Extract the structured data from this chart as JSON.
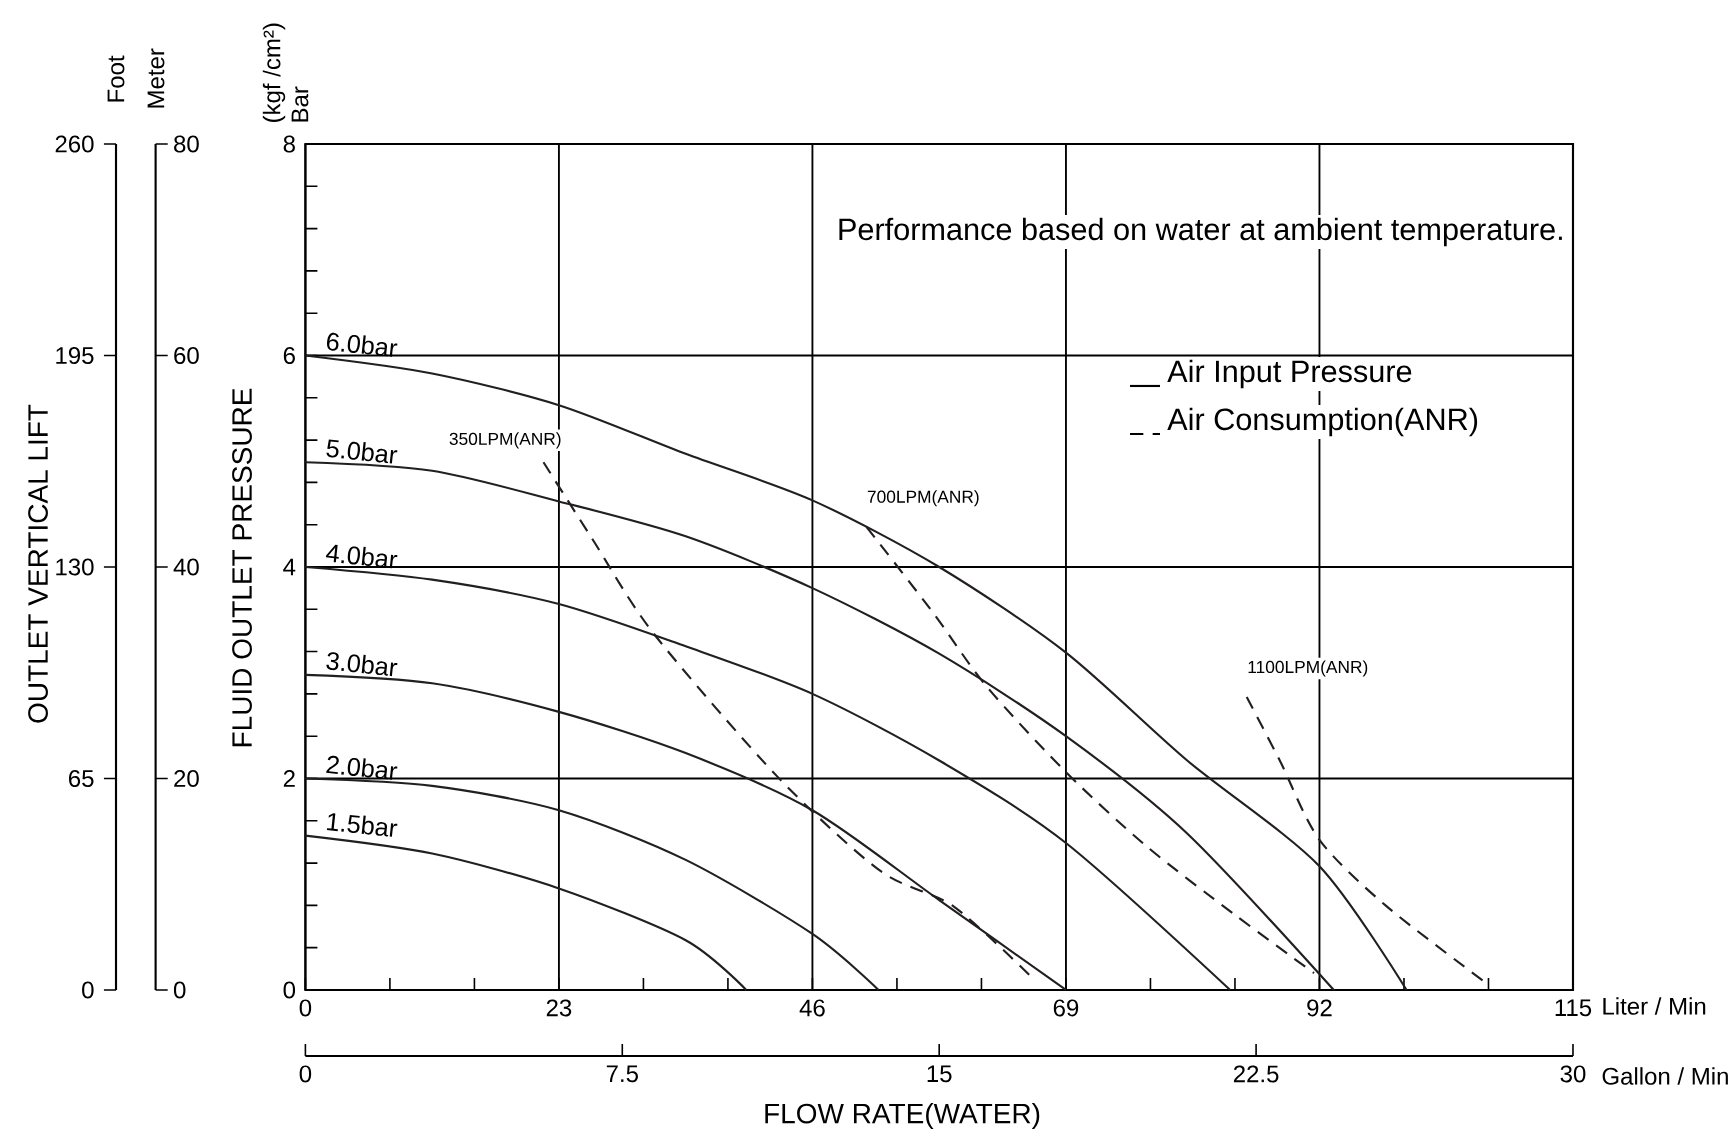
{
  "chart_data": {
    "type": "line",
    "xlabel": "FLOW RATE(WATER)",
    "ylabel": "FLUID OUTLET PRESSURE",
    "y2label": "Meter",
    "y3label": "Foot",
    "xlim": [
      0,
      115
    ],
    "xticks": [
      0,
      23,
      46,
      69,
      92,
      115
    ],
    "ylim": [
      0,
      8
    ],
    "yticks": [
      0,
      2,
      4,
      6,
      8
    ],
    "y2lim": [
      0,
      80
    ],
    "y2ticks": [
      0,
      20,
      40,
      60,
      80
    ],
    "y3lim": [
      0,
      260
    ],
    "y3ticks": [
      0,
      65,
      130,
      195,
      260
    ],
    "x2lim": [
      0,
      30
    ],
    "x2ticks": [
      0,
      7.5,
      15,
      22.5,
      30
    ],
    "grid": true,
    "marker": "none",
    "annotations": [
      "Performance based on water at ambient temperature.",
      "Air Input Pressure",
      "Air Consumption(ANR)",
      "OUTLET VERTICAL LIFT",
      "(kgf /cm²)",
      "Bar",
      "Liter / Min",
      "Gallon / Min"
    ],
    "series": [
      {
        "name": "6.0bar",
        "color": "#231f20",
        "line_style": "solid",
        "x": [
          0,
          11.5,
          23,
          34.5,
          46,
          57.5,
          69,
          80,
          92,
          99.9
        ],
        "values": [
          6,
          5.83,
          5.53,
          5.07,
          4.63,
          4.0,
          3.19,
          2.17,
          1.17,
          0
        ]
      },
      {
        "name": "5.0bar",
        "color": "#231f20",
        "line_style": "solid",
        "x": [
          0,
          11.5,
          23,
          34.5,
          46,
          57.5,
          69,
          80,
          93.3
        ],
        "values": [
          4.99,
          4.91,
          4.62,
          4.29,
          3.8,
          3.18,
          2.4,
          1.48,
          0
        ]
      },
      {
        "name": "4.0bar",
        "color": "#231f20",
        "line_style": "solid",
        "x": [
          0,
          11.5,
          23,
          34.5,
          46,
          57.5,
          69,
          83.9
        ],
        "values": [
          4,
          3.88,
          3.65,
          3.25,
          2.8,
          2.17,
          1.39,
          0
        ]
      },
      {
        "name": "3.0bar",
        "color": "#231f20",
        "line_style": "solid",
        "x": [
          0,
          11.5,
          23,
          34.5,
          46,
          57.5,
          69
        ],
        "values": [
          2.98,
          2.9,
          2.63,
          2.24,
          1.7,
          0.85,
          0
        ]
      },
      {
        "name": "2.0bar",
        "color": "#231f20",
        "line_style": "solid",
        "x": [
          0,
          11.5,
          23,
          34.5,
          46,
          52.0
        ],
        "values": [
          2,
          1.93,
          1.7,
          1.23,
          0.53,
          0
        ]
      },
      {
        "name": "1.5bar",
        "color": "#231f20",
        "line_style": "solid",
        "x": [
          0,
          11.5,
          23,
          34.5,
          40.0
        ],
        "values": [
          1.46,
          1.29,
          0.96,
          0.47,
          0
        ]
      },
      {
        "name": "350LPM(ANR)",
        "color": "#231f20",
        "line_style": "dashed",
        "x": [
          21.6,
          26.0,
          31.6,
          42.8,
          52.1,
          58.8,
          65.8
        ],
        "values": [
          4.99,
          4.27,
          3.37,
          2.02,
          1.13,
          0.79,
          0.13
        ]
      },
      {
        "name": "700LPM(ANR)",
        "color": "#231f20",
        "line_style": "dashed",
        "x": [
          50.9,
          57.0,
          61.8,
          69.1,
          76.3,
          84.2,
          91.5
        ],
        "values": [
          4.38,
          3.56,
          2.87,
          2.05,
          1.36,
          0.72,
          0.16
        ]
      },
      {
        "name": "1100LPM(ANR)",
        "color": "#231f20",
        "line_style": "dashed",
        "x": [
          85.4,
          88.4,
          92.0,
          98.1,
          107.2
        ],
        "values": [
          2.77,
          2.17,
          1.42,
          0.79,
          0.06
        ]
      }
    ]
  }
}
